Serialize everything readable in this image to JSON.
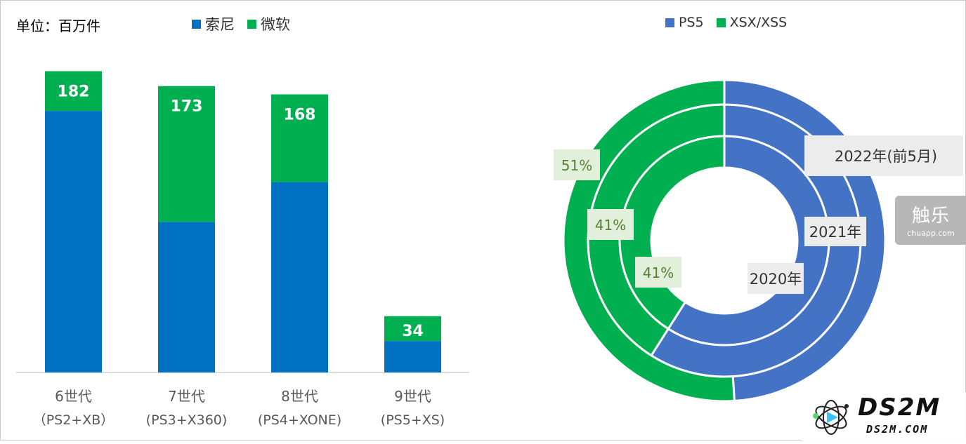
{
  "unit_label": "单位：百万件",
  "bar_legend": [
    {
      "label": "索尼",
      "color": "#0070C0"
    },
    {
      "label": "微软",
      "color": "#00B050"
    }
  ],
  "donut_legend": [
    {
      "label": "PS5",
      "color": "#4472C4"
    },
    {
      "label": "XSX/XSS",
      "color": "#00B050"
    }
  ],
  "watermark": {
    "brand": "触乐",
    "domain": "chuapp.com",
    "logo": "DS2M",
    "logo_url": "DS2M.COM"
  },
  "chart_data": [
    {
      "type": "bar",
      "stacked": true,
      "categories": [
        {
          "line1": "6世代",
          "line2": "（PS2+XB）"
        },
        {
          "line1": "7世代",
          "line2": "(PS3+X360)"
        },
        {
          "line1": "8世代",
          "line2": "(PS4+XONE)"
        },
        {
          "line1": "9世代",
          "line2": "(PS5+XS)"
        }
      ],
      "series": [
        {
          "name": "索尼",
          "color": "#0070C0",
          "values": [
            158,
            91,
            115,
            19
          ]
        },
        {
          "name": "微软",
          "color": "#00B050",
          "values": [
            24,
            82,
            53,
            15
          ]
        }
      ],
      "totals": [
        182,
        173,
        168,
        34
      ],
      "ylim": [
        0,
        200
      ]
    },
    {
      "type": "pie",
      "variant": "multi-ring donut",
      "rings": [
        {
          "name": "2020年",
          "values": {
            "PS5": 59,
            "XSX/XSS": 41
          },
          "label": "41%"
        },
        {
          "name": "2021年",
          "values": {
            "PS5": 59,
            "XSX/XSS": 41
          },
          "label": "41%"
        },
        {
          "name": "2022年(前5月)",
          "values": {
            "PS5": 49,
            "XSX/XSS": 51
          },
          "label": "51%"
        }
      ],
      "colors": {
        "PS5": "#4472C4",
        "XSX/XSS": "#00B050"
      }
    }
  ]
}
